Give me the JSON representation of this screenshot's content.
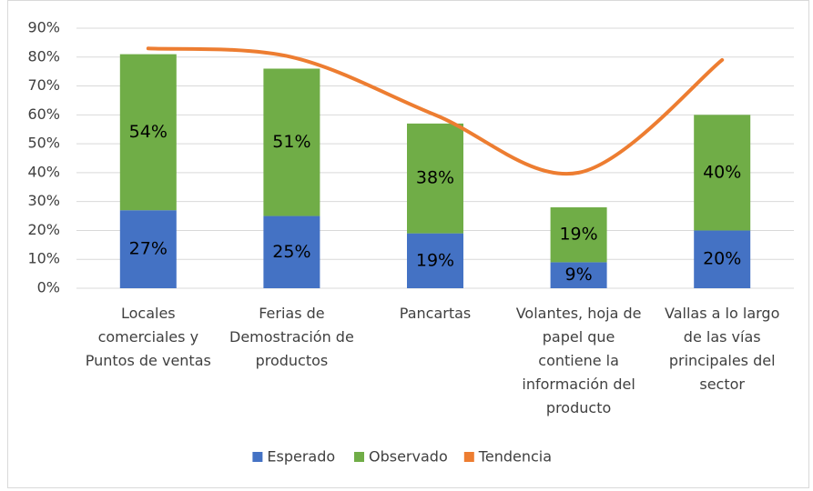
{
  "chart_data": {
    "type": "stacked-bar-line",
    "categories": [
      "Locales comerciales y Puntos de ventas",
      "Ferias de Demostración de productos",
      "Pancartas",
      "Volantes, hoja de papel que contiene la información del producto",
      "Vallas a lo largo de las vías principales del sector"
    ],
    "series": [
      {
        "name": "Esperado",
        "color": "#4472c4",
        "type": "bar",
        "values": [
          27,
          25,
          19,
          9,
          20
        ],
        "value_labels": [
          "27%",
          "25%",
          "19%",
          "9%",
          "20%"
        ]
      },
      {
        "name": "Observado",
        "color": "#70ad47",
        "type": "bar",
        "values": [
          54,
          51,
          38,
          19,
          40
        ],
        "value_labels": [
          "54%",
          "51%",
          "38%",
          "19%",
          "40%"
        ]
      },
      {
        "name": "Tendencia",
        "color": "#ed7d31",
        "type": "line",
        "values": [
          83,
          80,
          60,
          40,
          79
        ]
      }
    ],
    "ylim": [
      0,
      90
    ],
    "yticks": [
      {
        "value": 0,
        "label": "0%"
      },
      {
        "value": 10,
        "label": "10%"
      },
      {
        "value": 20,
        "label": "20%"
      },
      {
        "value": 30,
        "label": "30%"
      },
      {
        "value": 40,
        "label": "40%"
      },
      {
        "value": 50,
        "label": "50%"
      },
      {
        "value": 60,
        "label": "60%"
      },
      {
        "value": 70,
        "label": "70%"
      },
      {
        "value": 80,
        "label": "80%"
      },
      {
        "value": 90,
        "label": "90%"
      }
    ],
    "grid": true,
    "legend": "bottom"
  }
}
